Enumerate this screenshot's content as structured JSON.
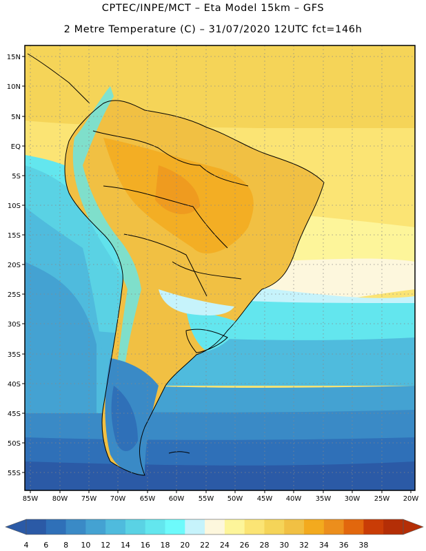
{
  "title": {
    "line1": "CPTEC/INPE/MCT –  Eta Model 15km – GFS",
    "line2": "2 Metre Temperature (C) – 31/07/2020 12UTC fct=146h"
  },
  "lat_labels": [
    "15N",
    "10N",
    "5N",
    "EQ",
    "5S",
    "10S",
    "15S",
    "20S",
    "25S",
    "30S",
    "35S",
    "40S",
    "45S",
    "50S",
    "55S"
  ],
  "lon_labels": [
    "85W",
    "80W",
    "75W",
    "70W",
    "65W",
    "60W",
    "55W",
    "50W",
    "45W",
    "40W",
    "35W",
    "30W",
    "25W",
    "20W"
  ],
  "colorbar": {
    "tick_labels": [
      "4",
      "6",
      "8",
      "10",
      "12",
      "14",
      "16",
      "18",
      "20",
      "22",
      "24",
      "26",
      "28",
      "30",
      "32",
      "34",
      "36",
      "38"
    ],
    "colors": [
      "#2b5aa6",
      "#2f70b8",
      "#3a8ac6",
      "#44a2d2",
      "#4fbbdd",
      "#5ad2e4",
      "#63e6ee",
      "#6dfafb",
      "#c6f3fb",
      "#fdf7dd",
      "#fdf59a",
      "#fbe474",
      "#f5d458",
      "#f1c043",
      "#f3aa1e",
      "#ec8e1c",
      "#e2670d",
      "#c93c06",
      "#b42e06"
    ],
    "extend_low_color": "#2b5aa6",
    "extend_high_color": "#b42e06"
  },
  "chart_data": {
    "type": "heatmap",
    "title": "2 Metre Temperature (C)",
    "model": "Eta Model 15km – GFS",
    "run": "31/07/2020 12UTC",
    "forecast_hours": 146,
    "units": "C",
    "lat_range": [
      "15N",
      "55S"
    ],
    "lon_range": [
      "85W",
      "20W"
    ],
    "levels": [
      4,
      6,
      8,
      10,
      12,
      14,
      16,
      18,
      20,
      22,
      24,
      26,
      28,
      30,
      32,
      34,
      36,
      38
    ]
  }
}
